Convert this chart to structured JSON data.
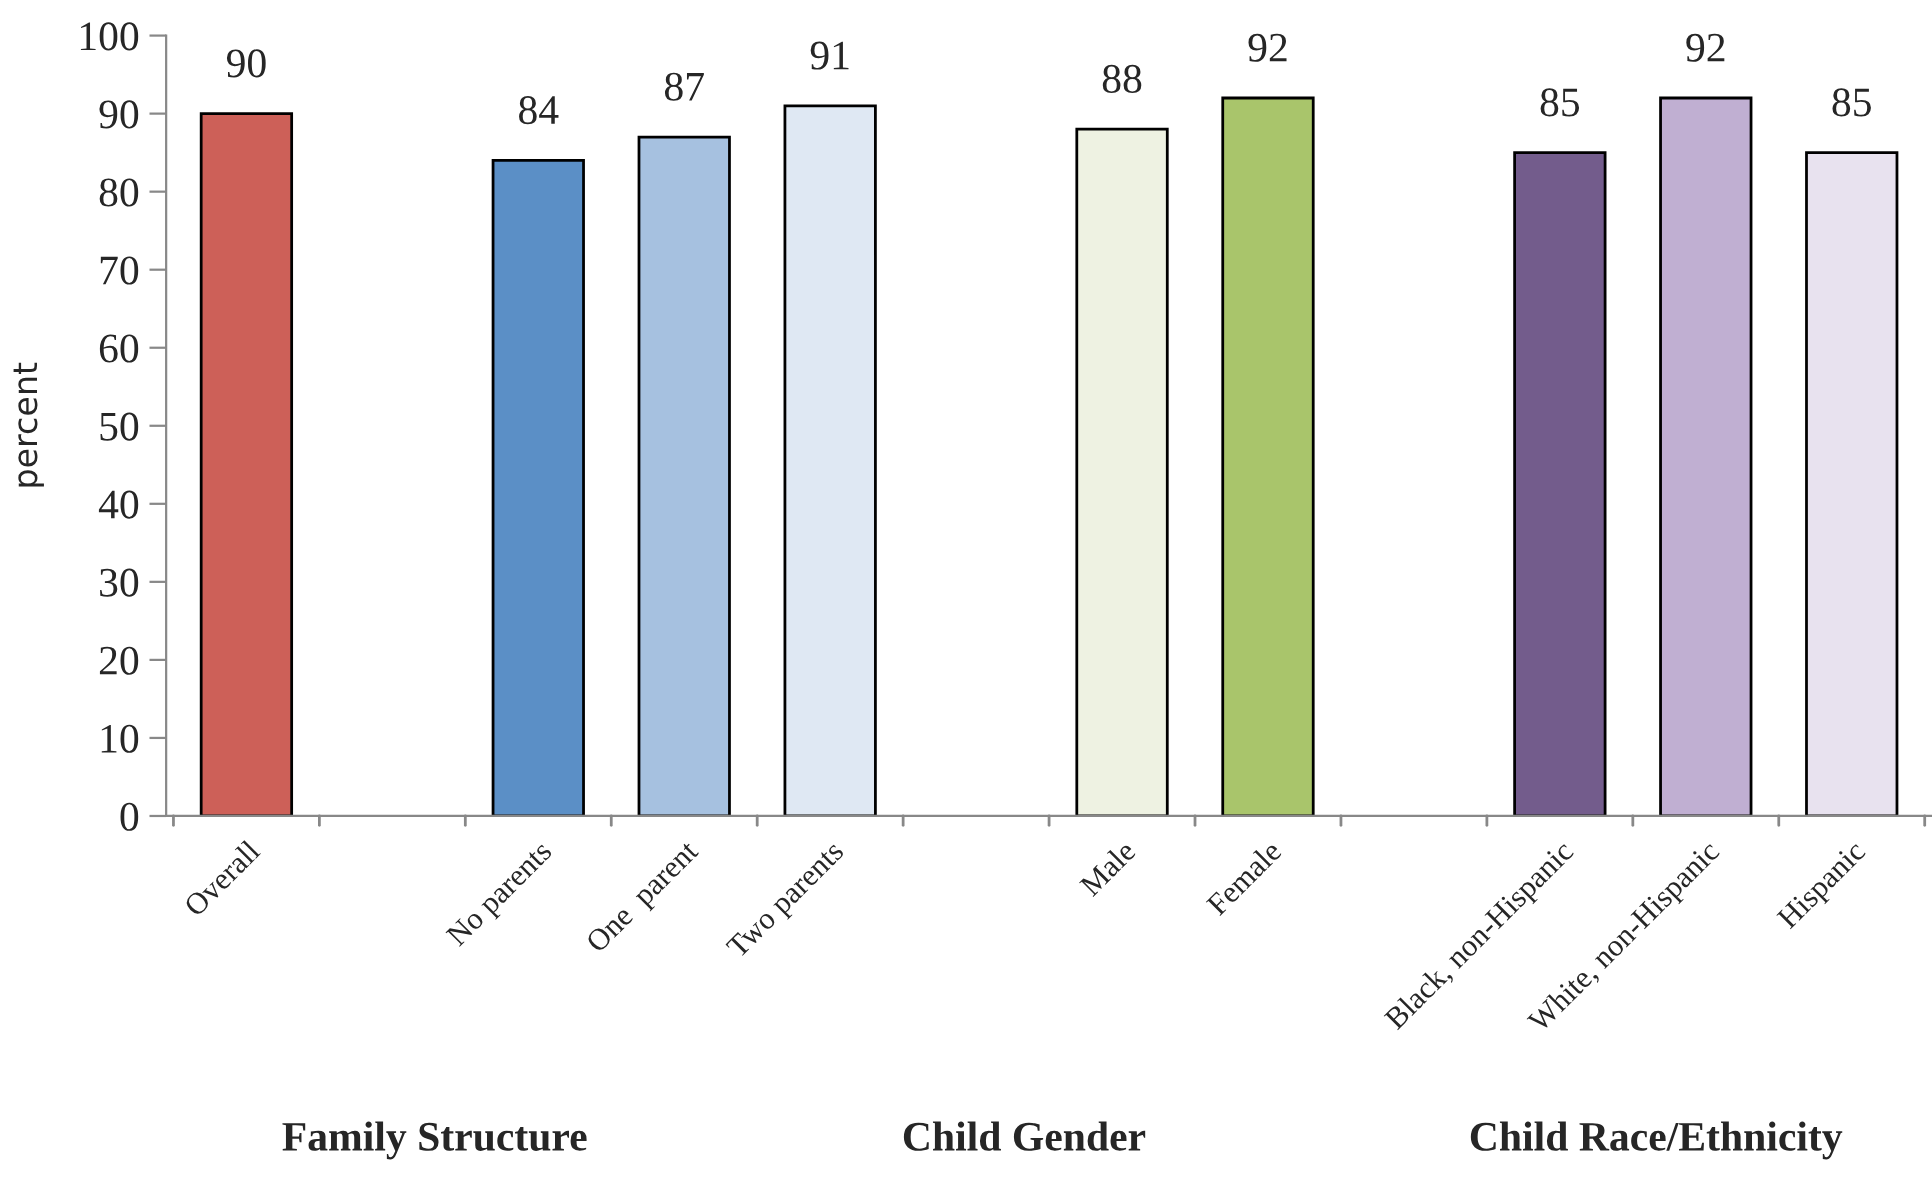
{
  "chart_data": {
    "type": "bar",
    "ylabel": "percent",
    "categories": [
      "Overall",
      null,
      "No parents",
      "One  parent",
      "Two parents",
      null,
      "Male",
      "Female",
      null,
      "Black, non-Hispanic",
      "White, non-Hispanic",
      "Hispanic"
    ],
    "values": [
      90,
      null,
      84,
      87,
      91,
      null,
      88,
      92,
      null,
      85,
      92,
      85
    ],
    "colors": [
      "#cd6058",
      null,
      "#5b8fc6",
      "#a6c1e0",
      "#dfe8f3",
      null,
      "#eef2e2",
      "#a9c56b",
      null,
      "#735c8c",
      "#c0afd2",
      "#e8e2ef"
    ],
    "ylim": [
      0,
      100
    ],
    "yticks": [
      0,
      10,
      20,
      30,
      40,
      50,
      60,
      70,
      80,
      90,
      100
    ],
    "data_labels": true,
    "grid": false,
    "legend": false,
    "annotations": [
      "Family Structure",
      "Child Gender",
      "Child Race/Ethnicity"
    ]
  }
}
